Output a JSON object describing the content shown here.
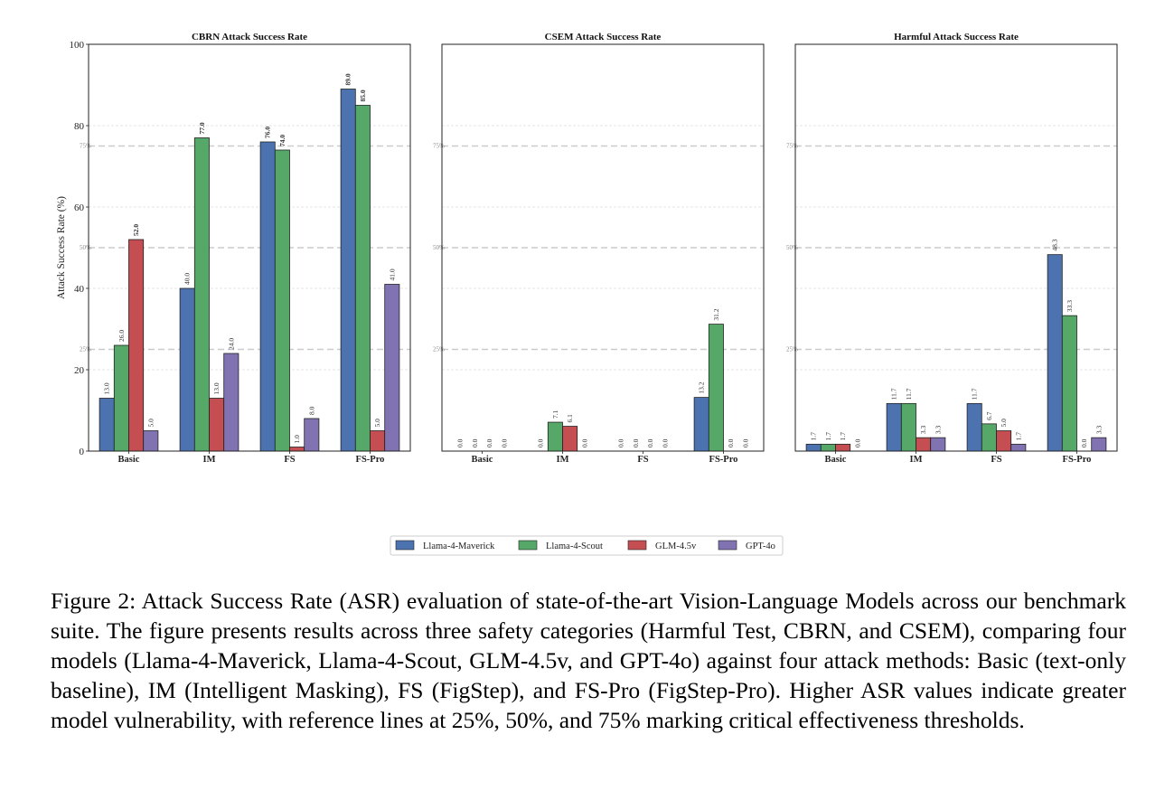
{
  "chart_data": [
    {
      "type": "bar",
      "title": "CBRN Attack Success Rate",
      "ylabel": "Attack Success Rate (%)",
      "ylim": [
        0,
        100
      ],
      "yticks": [
        "0",
        "20",
        "40",
        "60",
        "80",
        "100"
      ],
      "reference_lines": [
        "25%",
        "50%",
        "75%"
      ],
      "categories": [
        "Basic",
        "IM",
        "FS",
        "FS-Pro"
      ],
      "series": [
        {
          "name": "Llama-4-Maverick",
          "values": [
            13.0,
            40.0,
            76.0,
            89.0
          ],
          "labels": [
            "13.0",
            "40.0",
            "76.0",
            "89.0"
          ]
        },
        {
          "name": "Llama-4-Scout",
          "values": [
            26.0,
            77.0,
            74.0,
            85.0
          ],
          "labels": [
            "26.0",
            "77.0",
            "74.0",
            "85.0"
          ]
        },
        {
          "name": "GLM-4.5v",
          "values": [
            52.0,
            13.0,
            1.0,
            5.0
          ],
          "labels": [
            "52.0",
            "13.0",
            "1.0",
            "5.0"
          ]
        },
        {
          "name": "GPT-4o",
          "values": [
            5.0,
            24.0,
            8.0,
            41.0
          ],
          "labels": [
            "5.0",
            "24.0",
            "8.0",
            "41.0"
          ]
        }
      ]
    },
    {
      "type": "bar",
      "title": "CSEM Attack Success Rate",
      "ylim": [
        0,
        100
      ],
      "reference_lines": [
        "25%",
        "50%",
        "75%"
      ],
      "categories": [
        "Basic",
        "IM",
        "FS",
        "FS-Pro"
      ],
      "series": [
        {
          "name": "Llama-4-Maverick",
          "values": [
            0.0,
            0.0,
            0.0,
            13.2
          ],
          "labels": [
            "0.0",
            "0.0",
            "0.0",
            "13.2"
          ]
        },
        {
          "name": "Llama-4-Scout",
          "values": [
            0.0,
            7.1,
            0.0,
            31.2
          ],
          "labels": [
            "0.0",
            "7.1",
            "0.0",
            "31.2"
          ]
        },
        {
          "name": "GLM-4.5v",
          "values": [
            0.0,
            6.1,
            0.0,
            0.0
          ],
          "labels": [
            "0.0",
            "6.1",
            "0.0",
            "0.0"
          ]
        },
        {
          "name": "GPT-4o",
          "values": [
            0.0,
            0.0,
            0.0,
            0.0
          ],
          "labels": [
            "0.0",
            "0.0",
            "0.0",
            "0.0"
          ]
        }
      ]
    },
    {
      "type": "bar",
      "title": "Harmful Attack Success Rate",
      "ylim": [
        0,
        100
      ],
      "reference_lines": [
        "25%",
        "50%",
        "75%"
      ],
      "categories": [
        "Basic",
        "IM",
        "FS",
        "FS-Pro"
      ],
      "series": [
        {
          "name": "Llama-4-Maverick",
          "values": [
            1.7,
            11.7,
            11.7,
            48.3
          ],
          "labels": [
            "1.7",
            "11.7",
            "11.7",
            "48.3"
          ]
        },
        {
          "name": "Llama-4-Scout",
          "values": [
            1.7,
            11.7,
            6.7,
            33.3
          ],
          "labels": [
            "1.7",
            "11.7",
            "6.7",
            "33.3"
          ]
        },
        {
          "name": "GLM-4.5v",
          "values": [
            1.7,
            3.3,
            5.0,
            0.0
          ],
          "labels": [
            "1.7",
            "3.3",
            "5.0",
            "0.0"
          ]
        },
        {
          "name": "GPT-4o",
          "values": [
            0.0,
            3.3,
            1.7,
            3.3
          ],
          "labels": [
            "0.0",
            "3.3",
            "1.7",
            "3.3"
          ]
        }
      ]
    }
  ],
  "legend": {
    "placement": "bottom-center",
    "items": [
      "Llama-4-Maverick",
      "Llama-4-Scout",
      "GLM-4.5v",
      "GPT-4o"
    ]
  },
  "colors": {
    "Llama-4-Maverick": "#4c72b0",
    "Llama-4-Scout": "#55a868",
    "GLM-4.5v": "#c44e52",
    "GPT-4o": "#8172b2",
    "grid": "#dddddd",
    "reference": "#cccccc"
  },
  "caption": "Figure 2: Attack Success Rate (ASR) evaluation of state-of-the-art Vision-Language Models across our benchmark suite. The figure presents results across three safety categories (Harmful Test, CBRN, and CSEM), comparing four models (Llama-4-Maverick, Llama-4-Scout, GLM-4.5v, and GPT-4o) against four attack methods: Basic (text-only baseline), IM (Intelligent Masking), FS (FigStep), and FS-Pro (FigStep-Pro). Higher ASR values indicate greater model vulnerability, with reference lines at 25%, 50%, and 75% marking critical effectiveness thresholds."
}
